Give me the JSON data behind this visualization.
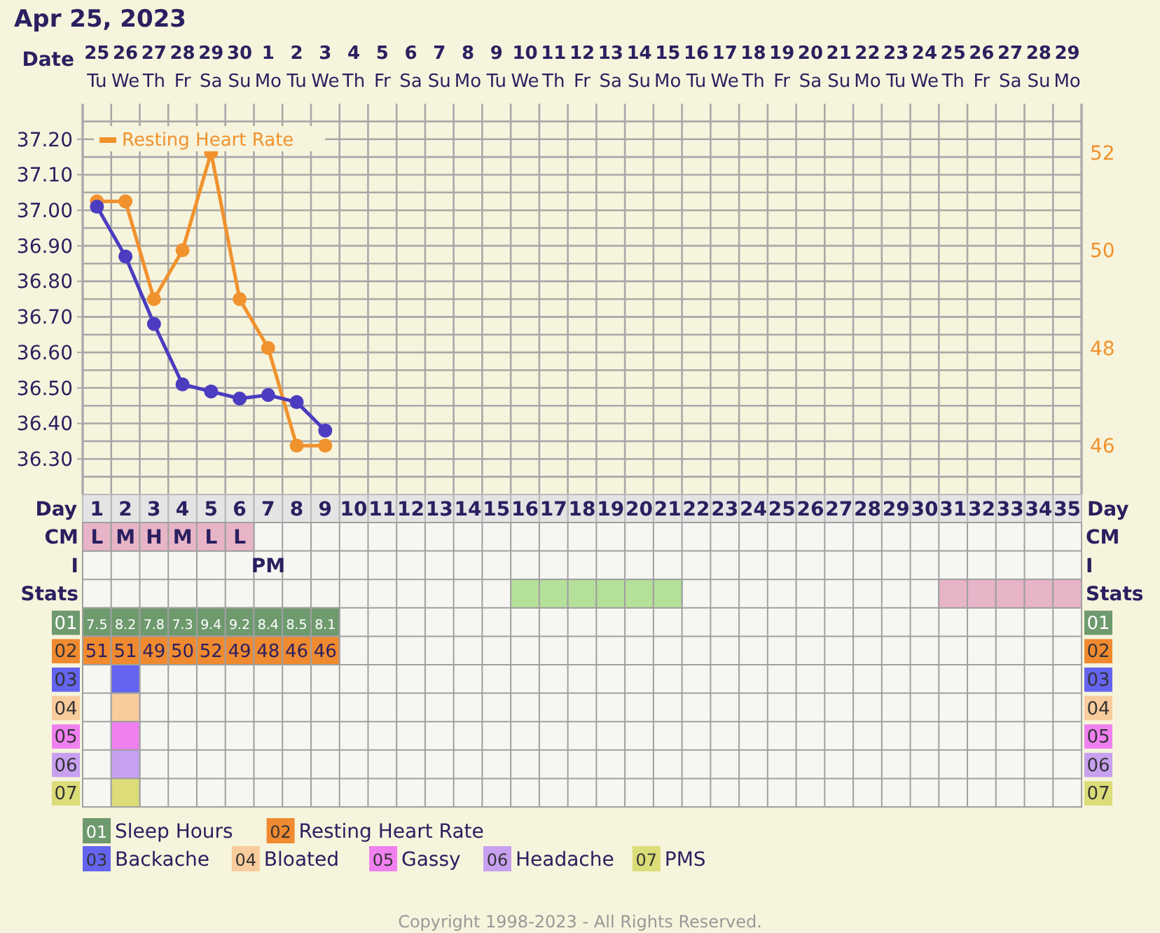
{
  "chart_data": [
    {
      "type": "line",
      "title": "Apr 25, 2023",
      "xlabel": "Day",
      "x2label": "Date",
      "x": [
        1,
        2,
        3,
        4,
        5,
        6,
        7,
        8,
        9
      ],
      "series": [
        {
          "color": "#4b3cc0",
          "values": [
            37.01,
            36.87,
            36.68,
            36.51,
            36.49,
            36.47,
            36.48,
            36.46,
            36.38
          ]
        },
        {
          "name": "Resting Heart Rate",
          "color": "#f0922e",
          "axis": "y2",
          "values": [
            51,
            51,
            49,
            50,
            52,
            49,
            48,
            46,
            46
          ]
        }
      ],
      "xlim": [
        0.5,
        35.5
      ],
      "xticks": [
        1,
        2,
        3,
        4,
        5,
        6,
        7,
        8,
        9,
        10,
        11,
        12,
        13,
        14,
        15,
        16,
        17,
        18,
        19,
        20,
        21,
        22,
        23,
        24,
        25,
        26,
        27,
        28,
        29,
        30,
        31,
        32,
        33,
        34,
        35
      ],
      "x2lim": [
        "2023-04-24T12:00",
        "2023-05-29T12:00"
      ],
      "x2ticks": [
        {
          "value": "2023-04-25",
          "label": "25\nTu"
        },
        {
          "value": "2023-04-26",
          "label": "26\nWe"
        },
        {
          "value": "2023-04-27",
          "label": "27\nTh"
        },
        {
          "value": "2023-04-28",
          "label": "28\nFr"
        },
        {
          "value": "2023-04-29",
          "label": "29\nSa"
        },
        {
          "value": "2023-04-30",
          "label": "30\nSu"
        },
        {
          "value": "2023-05-01",
          "label": "1\nMo"
        },
        {
          "value": "2023-05-02",
          "label": "2\nTu"
        },
        {
          "value": "2023-05-03",
          "label": "3\nWe"
        },
        {
          "value": "2023-05-04",
          "label": "4\nTh"
        },
        {
          "value": "2023-05-05",
          "label": "5\nFr"
        },
        {
          "value": "2023-05-06",
          "label": "6\nSa"
        },
        {
          "value": "2023-05-07",
          "label": "7\nSu"
        },
        {
          "value": "2023-05-08",
          "label": "8\nMo"
        },
        {
          "value": "2023-05-09",
          "label": "9\nTu"
        },
        {
          "value": "2023-05-10",
          "label": "10\nWe"
        },
        {
          "value": "2023-05-11",
          "label": "11\nTh"
        },
        {
          "value": "2023-05-12",
          "label": "12\nFr"
        },
        {
          "value": "2023-05-13",
          "label": "13\nSa"
        },
        {
          "value": "2023-05-14",
          "label": "14\nSu"
        },
        {
          "value": "2023-05-15",
          "label": "15\nMo"
        },
        {
          "value": "2023-05-16",
          "label": "16\nTu"
        },
        {
          "value": "2023-05-17",
          "label": "17\nWe"
        },
        {
          "value": "2023-05-18",
          "label": "18\nTh"
        },
        {
          "value": "2023-05-19",
          "label": "19\nFr"
        },
        {
          "value": "2023-05-20",
          "label": "20\nSa"
        },
        {
          "value": "2023-05-21",
          "label": "21\nSu"
        },
        {
          "value": "2023-05-22",
          "label": "22\nMo"
        },
        {
          "value": "2023-05-23",
          "label": "23\nTu"
        },
        {
          "value": "2023-05-24",
          "label": "24\nWe"
        },
        {
          "value": "2023-05-25",
          "label": "25\nTh"
        },
        {
          "value": "2023-05-26",
          "label": "26\nFr"
        },
        {
          "value": "2023-05-27",
          "label": "27\nSa"
        },
        {
          "value": "2023-05-28",
          "label": "28\nSu"
        },
        {
          "value": "2023-05-29",
          "label": "29\nMo"
        }
      ],
      "ylim": [
        36.2,
        37.3
      ],
      "yticks": [
        {
          "value": 36.25,
          "label": null
        },
        {
          "value": 36.3,
          "label": "36.30"
        },
        {
          "value": 36.35,
          "label": null
        },
        {
          "value": 36.4,
          "label": "36.40"
        },
        {
          "value": 36.45,
          "label": null
        },
        {
          "value": 36.5,
          "label": "36.50"
        },
        {
          "value": 36.55,
          "label": null
        },
        {
          "value": 36.6,
          "label": "36.60"
        },
        {
          "value": 36.65,
          "label": null
        },
        {
          "value": 36.7,
          "label": "36.70"
        },
        {
          "value": 36.75,
          "label": null
        },
        {
          "value": 36.8,
          "label": "36.80"
        },
        {
          "value": 36.85,
          "label": null
        },
        {
          "value": 36.9,
          "label": "36.90"
        },
        {
          "value": 36.95,
          "label": null
        },
        {
          "value": 37.0,
          "label": "37.00"
        },
        {
          "value": 37.05,
          "label": null
        },
        {
          "value": 37.1,
          "label": "37.10"
        },
        {
          "value": 37.15,
          "label": null
        },
        {
          "value": 37.2,
          "label": "37.20"
        },
        {
          "value": 37.25,
          "label": null
        }
      ],
      "y2lim": [
        45,
        53
      ],
      "y2ticks": [
        46,
        48,
        50,
        52
      ],
      "marker": "circle",
      "grid": true,
      "legend": "top left"
    },
    {
      "type": "heatmap",
      "categories": [
        null,
        null,
        null,
        null,
        null,
        null,
        null,
        null,
        null,
        null,
        null,
        null,
        null,
        null,
        null,
        null,
        null,
        null,
        null,
        null,
        null,
        null,
        null,
        null,
        null,
        null,
        null,
        null,
        null,
        null,
        null,
        null,
        null,
        null,
        null
      ],
      "y_categories": [
        "CM",
        "I",
        "Stats",
        "01",
        "02",
        "03",
        "04",
        "05",
        "06",
        "07"
      ],
      "y2_categories": [
        "CM",
        "I",
        "Stats",
        "01",
        "02",
        "03",
        "04",
        "05",
        "06",
        "07"
      ],
      "cells": [
        [
          null,
          null,
          null,
          null,
          null,
          null,
          null,
          null,
          null,
          null,
          null,
          null,
          null,
          null,
          null,
          null,
          null,
          null,
          null,
          null,
          null,
          null,
          null,
          null,
          null,
          null,
          null,
          null,
          null,
          null,
          null,
          null,
          null,
          null,
          null
        ],
        [
          null,
          null,
          null,
          null,
          null,
          null,
          null,
          null,
          null,
          null,
          null,
          null,
          null,
          null,
          null,
          null,
          null,
          null,
          null,
          null,
          null,
          null,
          null,
          null,
          null,
          null,
          null,
          null,
          null,
          null,
          null,
          null,
          null,
          null,
          null
        ],
        [
          null,
          null,
          null,
          null,
          null,
          null,
          null,
          null,
          null,
          null,
          null,
          null,
          null,
          null,
          null,
          null,
          null,
          null,
          null,
          null,
          null,
          null,
          null,
          null,
          null,
          null,
          null,
          null,
          null,
          null,
          null,
          null,
          null,
          null,
          null
        ],
        [
          null,
          null,
          null,
          null,
          null,
          null,
          null,
          null,
          null,
          null,
          null,
          null,
          null,
          null,
          null,
          null,
          null,
          null,
          null,
          null,
          null,
          null,
          null,
          null,
          null,
          null,
          null,
          null,
          null,
          null,
          null,
          null,
          null,
          null,
          null
        ],
        [
          null,
          null,
          null,
          null,
          null,
          null,
          null,
          null,
          null,
          null,
          null,
          null,
          null,
          null,
          null,
          null,
          null,
          null,
          null,
          null,
          null,
          null,
          null,
          null,
          null,
          null,
          null,
          null,
          null,
          null,
          null,
          null,
          null,
          null,
          null
        ],
        [
          null,
          null,
          null,
          null,
          null,
          null,
          null,
          null,
          null,
          null,
          null,
          null,
          null,
          null,
          null,
          null,
          null,
          null,
          null,
          null,
          null,
          null,
          null,
          null,
          null,
          null,
          null,
          null,
          null,
          null,
          null,
          null,
          null,
          null,
          null
        ],
        [
          null,
          null,
          null,
          null,
          null,
          null,
          null,
          null,
          null,
          null,
          null,
          null,
          null,
          null,
          null,
          null,
          null,
          null,
          null,
          null,
          null,
          null,
          null,
          null,
          null,
          null,
          null,
          null,
          null,
          null,
          null,
          null,
          null,
          null,
          null
        ],
        [
          null,
          null,
          null,
          null,
          null,
          null,
          null,
          null,
          null,
          null,
          null,
          null,
          null,
          null,
          null,
          null,
          null,
          null,
          null,
          null,
          null,
          null,
          null,
          null,
          null,
          null,
          null,
          null,
          null,
          null,
          null,
          null,
          null,
          null,
          null
        ],
        [
          null,
          null,
          null,
          null,
          null,
          null,
          null,
          null,
          null,
          null,
          null,
          null,
          null,
          null,
          null,
          null,
          null,
          null,
          null,
          null,
          null,
          null,
          null,
          null,
          null,
          null,
          null,
          null,
          null,
          null,
          null,
          null,
          null,
          null,
          null
        ],
        [
          null,
          null,
          null,
          null,
          null,
          null,
          null,
          null,
          null,
          null,
          null,
          null,
          null,
          null,
          null,
          null,
          null,
          null,
          null,
          null,
          null,
          null,
          null,
          null,
          null,
          null,
          null,
          null,
          null,
          null,
          null,
          null,
          null,
          null,
          null
        ]
      ],
      "cell_labels": [
        [
          "L",
          "M",
          "H",
          "M",
          "L",
          "L",
          null,
          null,
          null,
          null,
          null,
          null,
          null,
          null,
          null,
          null,
          null,
          null,
          null,
          null,
          null,
          null,
          null,
          null,
          null,
          null,
          null,
          null,
          null,
          null,
          null,
          null,
          null,
          null,
          null
        ],
        [
          null,
          null,
          null,
          null,
          null,
          null,
          "PM",
          null,
          null,
          null,
          null,
          null,
          null,
          null,
          null,
          null,
          null,
          null,
          null,
          null,
          null,
          null,
          null,
          null,
          null,
          null,
          null,
          null,
          null,
          null,
          null,
          null,
          null,
          null,
          null
        ],
        [
          null,
          null,
          null,
          null,
          null,
          null,
          null,
          null,
          null,
          null,
          null,
          null,
          null,
          null,
          null,
          null,
          null,
          null,
          null,
          null,
          null,
          null,
          null,
          null,
          null,
          null,
          null,
          null,
          null,
          null,
          null,
          null,
          null,
          null,
          null
        ],
        [
          "7.5",
          "8.2",
          "7.8",
          "7.3",
          "9.4",
          "9.2",
          "8.4",
          "8.5",
          "8.1",
          null,
          null,
          null,
          null,
          null,
          null,
          null,
          null,
          null,
          null,
          null,
          null,
          null,
          null,
          null,
          null,
          null,
          null,
          null,
          null,
          null,
          null,
          null,
          null,
          null,
          null
        ],
        [
          "51",
          "51",
          "49",
          "50",
          "52",
          "49",
          "48",
          "46",
          "46",
          null,
          null,
          null,
          null,
          null,
          null,
          null,
          null,
          null,
          null,
          null,
          null,
          null,
          null,
          null,
          null,
          null,
          null,
          null,
          null,
          null,
          null,
          null,
          null,
          null,
          null
        ],
        [
          null,
          null,
          null,
          null,
          null,
          null,
          null,
          null,
          null,
          null,
          null,
          null,
          null,
          null,
          null,
          null,
          null,
          null,
          null,
          null,
          null,
          null,
          null,
          null,
          null,
          null,
          null,
          null,
          null,
          null,
          null,
          null,
          null,
          null,
          null
        ],
        [
          null,
          null,
          null,
          null,
          null,
          null,
          null,
          null,
          null,
          null,
          null,
          null,
          null,
          null,
          null,
          null,
          null,
          null,
          null,
          null,
          null,
          null,
          null,
          null,
          null,
          null,
          null,
          null,
          null,
          null,
          null,
          null,
          null,
          null,
          null
        ],
        [
          null,
          null,
          null,
          null,
          null,
          null,
          null,
          null,
          null,
          null,
          null,
          null,
          null,
          null,
          null,
          null,
          null,
          null,
          null,
          null,
          null,
          null,
          null,
          null,
          null,
          null,
          null,
          null,
          null,
          null,
          null,
          null,
          null,
          null,
          null
        ],
        [
          null,
          null,
          null,
          null,
          null,
          null,
          null,
          null,
          null,
          null,
          null,
          null,
          null,
          null,
          null,
          null,
          null,
          null,
          null,
          null,
          null,
          null,
          null,
          null,
          null,
          null,
          null,
          null,
          null,
          null,
          null,
          null,
          null,
          null,
          null
        ],
        [
          null,
          null,
          null,
          null,
          null,
          null,
          null,
          null,
          null,
          null,
          null,
          null,
          null,
          null,
          null,
          null,
          null,
          null,
          null,
          null,
          null,
          null,
          null,
          null,
          null,
          null,
          null,
          null,
          null,
          null,
          null,
          null,
          null,
          null,
          null
        ]
      ],
      "series": [
        {
          "values": [
            null,
            null,
            null,
            null,
            null,
            null,
            null,
            null,
            null,
            null,
            null,
            null,
            null,
            null,
            null,
            null,
            null,
            null,
            null,
            null,
            null,
            null,
            null,
            null,
            null,
            null,
            null,
            null,
            null,
            null,
            null,
            null,
            null,
            null,
            null
          ],
          "colors": [
            "#e8b4c8",
            "#e8b4c8",
            "#e8b4c8",
            "#e8b4c8",
            "#e8b4c8",
            "#e8b4c8",
            null,
            null,
            null,
            null,
            null,
            null,
            null,
            null,
            null,
            null,
            null,
            null,
            null,
            null,
            null,
            null,
            null,
            null,
            null,
            null,
            null,
            null,
            null,
            null,
            null,
            null,
            null,
            null,
            null
          ]
        },
        {
          "values": [
            null,
            null,
            null,
            null,
            null,
            null,
            null,
            null,
            null,
            null,
            null,
            null,
            null,
            null,
            null,
            null,
            null,
            null,
            null,
            null,
            null,
            null,
            null,
            null,
            null,
            null,
            null,
            null,
            null,
            null,
            null,
            null,
            null,
            null,
            null
          ]
        },
        {
          "values": [
            null,
            null,
            null,
            null,
            null,
            null,
            null,
            null,
            null,
            null,
            null,
            null,
            null,
            null,
            null,
            null,
            null,
            null,
            null,
            null,
            null,
            null,
            null,
            null,
            null,
            null,
            null,
            null,
            null,
            null,
            null,
            null,
            null,
            null,
            null
          ],
          "colors": [
            null,
            null,
            null,
            null,
            null,
            null,
            null,
            null,
            null,
            null,
            null,
            null,
            null,
            null,
            null,
            "#b5e09a",
            "#b5e09a",
            "#b5e09a",
            "#b5e09a",
            "#b5e09a",
            "#b5e09a",
            null,
            null,
            null,
            null,
            null,
            null,
            null,
            null,
            null,
            "#e8b4c8",
            "#e8b4c8",
            "#e8b4c8",
            "#e8b4c8",
            "#e8b4c8"
          ]
        },
        {
          "name": "Sleep Hours",
          "color": "#6e9a6e",
          "values": [
            null,
            null,
            null,
            null,
            null,
            null,
            null,
            null,
            null,
            null,
            null,
            null,
            null,
            null,
            null,
            null,
            null,
            null,
            null,
            null,
            null,
            null,
            null,
            null,
            null,
            null,
            null,
            null,
            null,
            null,
            null,
            null,
            null,
            null,
            null
          ]
        },
        {
          "name": "Resting Heart Rate",
          "color": "#f08a30",
          "values": [
            null,
            null,
            null,
            null,
            null,
            null,
            null,
            null,
            null,
            null,
            null,
            null,
            null,
            null,
            null,
            null,
            null,
            null,
            null,
            null,
            null,
            null,
            null,
            null,
            null,
            null,
            null,
            null,
            null,
            null,
            null,
            null,
            null,
            null,
            null
          ]
        },
        {
          "name": "Backache",
          "color": "#6464f0",
          "values": [
            null,
            null,
            null,
            null,
            null,
            null,
            null,
            null,
            null,
            null,
            null,
            null,
            null,
            null,
            null,
            null,
            null,
            null,
            null,
            null,
            null,
            null,
            null,
            null,
            null,
            null,
            null,
            null,
            null,
            null,
            null,
            null,
            null,
            null,
            null
          ],
          "colors": [
            null,
            "#6464f0",
            null,
            null,
            null,
            null,
            null,
            null,
            null,
            null,
            null,
            null,
            null,
            null,
            null,
            null,
            null,
            null,
            null,
            null,
            null,
            null,
            null,
            null,
            null,
            null,
            null,
            null,
            null,
            null,
            null,
            null,
            null,
            null,
            null
          ]
        },
        {
          "name": "Bloated",
          "color": "#f8cc9c",
          "values": [
            null,
            null,
            null,
            null,
            null,
            null,
            null,
            null,
            null,
            null,
            null,
            null,
            null,
            null,
            null,
            null,
            null,
            null,
            null,
            null,
            null,
            null,
            null,
            null,
            null,
            null,
            null,
            null,
            null,
            null,
            null,
            null,
            null,
            null,
            null
          ],
          "colors": [
            null,
            "#f8cc9c",
            null,
            null,
            null,
            null,
            null,
            null,
            null,
            null,
            null,
            null,
            null,
            null,
            null,
            null,
            null,
            null,
            null,
            null,
            null,
            null,
            null,
            null,
            null,
            null,
            null,
            null,
            null,
            null,
            null,
            null,
            null,
            null,
            null
          ]
        },
        {
          "name": "Gassy",
          "color": "#f080f0",
          "values": [
            null,
            null,
            null,
            null,
            null,
            null,
            null,
            null,
            null,
            null,
            null,
            null,
            null,
            null,
            null,
            null,
            null,
            null,
            null,
            null,
            null,
            null,
            null,
            null,
            null,
            null,
            null,
            null,
            null,
            null,
            null,
            null,
            null,
            null,
            null
          ],
          "colors": [
            null,
            "#f080f0",
            null,
            null,
            null,
            null,
            null,
            null,
            null,
            null,
            null,
            null,
            null,
            null,
            null,
            null,
            null,
            null,
            null,
            null,
            null,
            null,
            null,
            null,
            null,
            null,
            null,
            null,
            null,
            null,
            null,
            null,
            null,
            null,
            null
          ]
        },
        {
          "name": "Headache",
          "color": "#c8a0f0",
          "values": [
            null,
            null,
            null,
            null,
            null,
            null,
            null,
            null,
            null,
            null,
            null,
            null,
            null,
            null,
            null,
            null,
            null,
            null,
            null,
            null,
            null,
            null,
            null,
            null,
            null,
            null,
            null,
            null,
            null,
            null,
            null,
            null,
            null,
            null,
            null
          ],
          "colors": [
            null,
            "#c8a0f0",
            null,
            null,
            null,
            null,
            null,
            null,
            null,
            null,
            null,
            null,
            null,
            null,
            null,
            null,
            null,
            null,
            null,
            null,
            null,
            null,
            null,
            null,
            null,
            null,
            null,
            null,
            null,
            null,
            null,
            null,
            null,
            null,
            null
          ]
        },
        {
          "name": "PMS",
          "color": "#dcdc78",
          "values": [
            null,
            null,
            null,
            null,
            null,
            null,
            null,
            null,
            null,
            null,
            null,
            null,
            null,
            null,
            null,
            null,
            null,
            null,
            null,
            null,
            null,
            null,
            null,
            null,
            null,
            null,
            null,
            null,
            null,
            null,
            null,
            null,
            null,
            null,
            null
          ],
          "colors": [
            null,
            "#dcdc78",
            null,
            null,
            null,
            null,
            null,
            null,
            null,
            null,
            null,
            null,
            null,
            null,
            null,
            null,
            null,
            null,
            null,
            null,
            null,
            null,
            null,
            null,
            null,
            null,
            null,
            null,
            null,
            null,
            null,
            null,
            null,
            null,
            null
          ]
        }
      ],
      "legend": "bottom",
      "annotations": [
        "Copyright 1998-2023 - All Rights Reserved."
      ]
    }
  ]
}
